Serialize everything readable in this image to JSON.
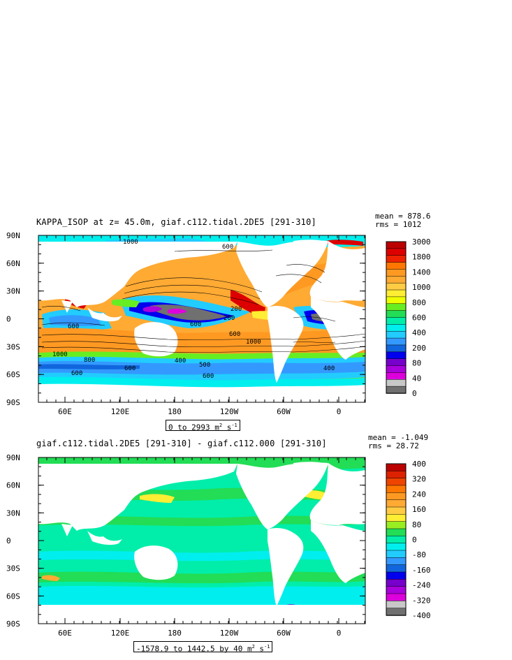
{
  "maps": [
    {
      "title": "KAPPA_ISOP at z=  45.0m, giaf.c112.tidal.2DE5 [291-310]",
      "mean": "mean = 878.6",
      "rms": "rms = 1012",
      "range_text": "0 to 2993 m",
      "range_unit_power": "2",
      "range_unit_tail": " s",
      "range_unit_power2": "-1",
      "lat_labels": [
        "90N",
        "60N",
        "30N",
        "0",
        "30S",
        "60S",
        "90S"
      ],
      "lon_labels": [
        "60E",
        "120E",
        "180",
        "120W",
        "60W",
        "0"
      ],
      "colorbar_labels": [
        "3000",
        "1800",
        "1400",
        "1000",
        "800",
        "600",
        "400",
        "200",
        "80",
        "40",
        "0"
      ],
      "colorbar_colors": [
        "#bb0000",
        "#dd0000",
        "#ee2200",
        "#ff7700",
        "#ff9922",
        "#ffaa33",
        "#ffcc44",
        "#ffee33",
        "#eeff00",
        "#66ee22",
        "#22dd55",
        "#00eeaa",
        "#00eeee",
        "#22ccff",
        "#3399ff",
        "#1166dd",
        "#0000ee",
        "#7700cc",
        "#aa00dd",
        "#dd00dd",
        "#c8c8c8",
        "#707070"
      ],
      "contour_labels": [
        "1000",
        "600",
        "600",
        "600",
        "200",
        "200",
        "600",
        "1000",
        "1000",
        "400",
        "500",
        "600",
        "800",
        "600",
        "600",
        "400"
      ]
    },
    {
      "title": "giaf.c112.tidal.2DE5 [291-310] - giaf.c112.000 [291-310]",
      "mean": "mean = -1.049",
      "rms": "rms = 28.72",
      "range_text": "-1578.9 to 1442.5 by 40 m",
      "range_unit_power": "2",
      "range_unit_tail": " s",
      "range_unit_power2": "-1",
      "lat_labels": [
        "90N",
        "60N",
        "30N",
        "0",
        "30S",
        "60S",
        "90S"
      ],
      "lon_labels": [
        "60E",
        "120E",
        "180",
        "120W",
        "60W",
        "0"
      ],
      "colorbar_labels": [
        "400",
        "320",
        "240",
        "160",
        "80",
        "0",
        "-80",
        "-160",
        "-240",
        "-320",
        "-400"
      ],
      "colorbar_colors": [
        "#bb0000",
        "#dd2200",
        "#ee4400",
        "#ff7700",
        "#ff9922",
        "#ffaa33",
        "#ffcc44",
        "#ffee33",
        "#99ee22",
        "#22dd55",
        "#00eeaa",
        "#00eeee",
        "#22ccff",
        "#3399ff",
        "#1166dd",
        "#0000ee",
        "#7700cc",
        "#aa00dd",
        "#dd00dd",
        "#c8c8c8",
        "#707070"
      ]
    }
  ]
}
